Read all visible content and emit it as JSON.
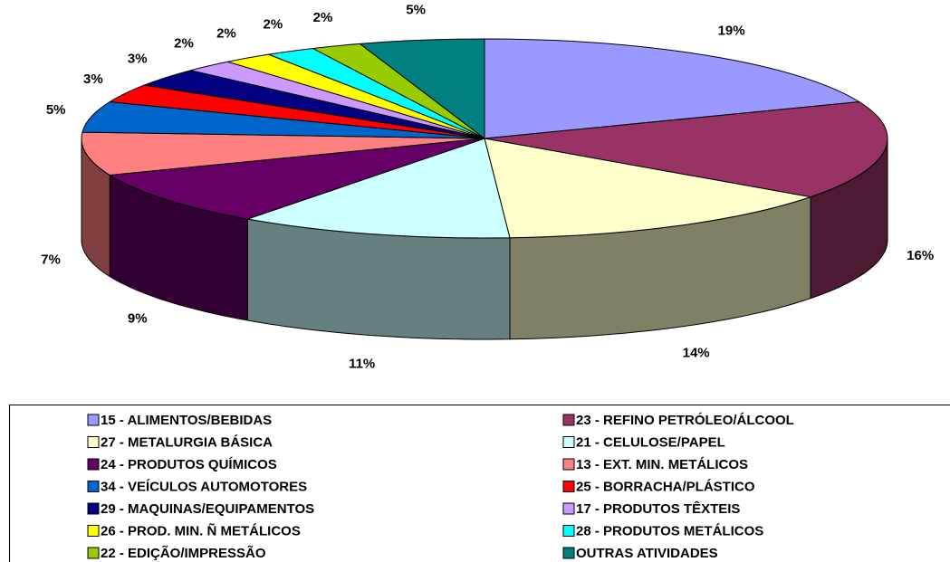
{
  "chart_data": {
    "type": "pie",
    "categories": [
      "15 - ALIMENTOS/BEBIDAS",
      "23 - REFINO PETRÓLEO/ÁLCOOL",
      "27 - METALURGIA BÁSICA",
      "21 - CELULOSE/PAPEL",
      "24 - PRODUTOS QUÍMICOS",
      "13 - EXT. MIN. METÁLICOS",
      "34 - VEÍCULOS AUTOMOTORES",
      "25 - BORRACHA/PLÁSTICO",
      "29 - MAQUINAS/EQUIPAMENTOS",
      "17 - PRODUTOS TÊXTEIS",
      "26 - PROD. MIN. Ñ METÁLICOS",
      "28 - PRODUTOS METÁLICOS",
      "22 - EDIÇÃO/IMPRESSÃO",
      "OUTRAS ATIVIDADES"
    ],
    "values": [
      19,
      16,
      14,
      11,
      9,
      7,
      5,
      3,
      3,
      2,
      2,
      2,
      2,
      5
    ],
    "value_labels": [
      "19%",
      "16%",
      "14%",
      "11%",
      "9%",
      "7%",
      "5%",
      "3%",
      "3%",
      "2%",
      "2%",
      "2%",
      "2%",
      "5%"
    ],
    "colors": [
      "#9999ff",
      "#993366",
      "#ffffcc",
      "#ccffff",
      "#660066",
      "#ff8080",
      "#0066cc",
      "#ff0000",
      "#000080",
      "#cc99ff",
      "#ffff00",
      "#00ffff",
      "#99cc00",
      "#008080"
    ]
  }
}
